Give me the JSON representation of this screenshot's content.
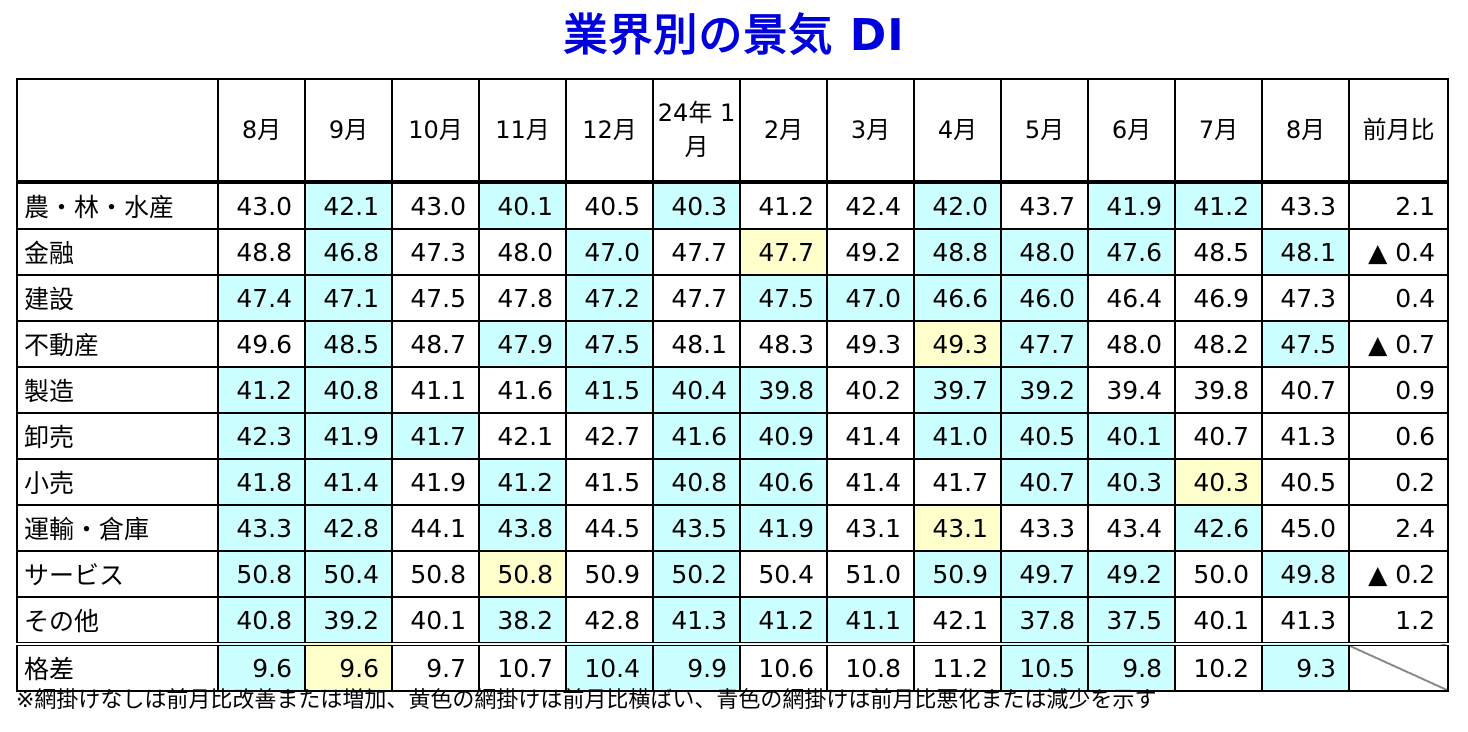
{
  "title": "業界別の景気 DI",
  "note": "※網掛けなしは前月比改善または増加、黄色の網掛けは前月比横ばい、青色の網掛けは前月比悪化または減少を示す",
  "colors": {
    "title": "#0000dd",
    "blue_shade": "#ccffff",
    "yellow_shade": "#ffffcc"
  },
  "chart_data": {
    "type": "table",
    "title": "業界別の景気 DI",
    "columns": [
      "8月",
      "9月",
      "10月",
      "11月",
      "12月",
      "24年 1月",
      "2月",
      "3月",
      "4月",
      "5月",
      "6月",
      "7月",
      "8月"
    ],
    "change_column": "前月比",
    "rows": [
      {
        "label": "農・林・水産",
        "values": [
          "43.0",
          "42.1",
          "43.0",
          "40.1",
          "40.5",
          "40.3",
          "41.2",
          "42.4",
          "42.0",
          "43.7",
          "41.9",
          "41.2",
          "43.3"
        ],
        "shade": [
          "",
          "b",
          "",
          "b",
          "",
          "b",
          "",
          "",
          "b",
          "",
          "b",
          "b",
          ""
        ],
        "change": "2.1"
      },
      {
        "label": "金融",
        "values": [
          "48.8",
          "46.8",
          "47.3",
          "48.0",
          "47.0",
          "47.7",
          "47.7",
          "49.2",
          "48.8",
          "48.0",
          "47.6",
          "48.5",
          "48.1"
        ],
        "shade": [
          "",
          "b",
          "",
          "",
          "b",
          "",
          "y",
          "",
          "b",
          "b",
          "b",
          "",
          "b"
        ],
        "change": "▲ 0.4"
      },
      {
        "label": "建設",
        "values": [
          "47.4",
          "47.1",
          "47.5",
          "47.8",
          "47.2",
          "47.7",
          "47.5",
          "47.0",
          "46.6",
          "46.0",
          "46.4",
          "46.9",
          "47.3"
        ],
        "shade": [
          "b",
          "b",
          "",
          "",
          "b",
          "",
          "b",
          "b",
          "b",
          "b",
          "",
          "",
          ""
        ],
        "change": "0.4"
      },
      {
        "label": "不動産",
        "values": [
          "49.6",
          "48.5",
          "48.7",
          "47.9",
          "47.5",
          "48.1",
          "48.3",
          "49.3",
          "49.3",
          "47.7",
          "48.0",
          "48.2",
          "47.5"
        ],
        "shade": [
          "",
          "b",
          "",
          "b",
          "b",
          "",
          "",
          "",
          "y",
          "b",
          "",
          "",
          "b"
        ],
        "change": "▲ 0.7"
      },
      {
        "label": "製造",
        "values": [
          "41.2",
          "40.8",
          "41.1",
          "41.6",
          "41.5",
          "40.4",
          "39.8",
          "40.2",
          "39.7",
          "39.2",
          "39.4",
          "39.8",
          "40.7"
        ],
        "shade": [
          "b",
          "b",
          "",
          "",
          "b",
          "b",
          "b",
          "",
          "b",
          "b",
          "",
          "",
          ""
        ],
        "change": "0.9"
      },
      {
        "label": "卸売",
        "values": [
          "42.3",
          "41.9",
          "41.7",
          "42.1",
          "42.7",
          "41.6",
          "40.9",
          "41.4",
          "41.0",
          "40.5",
          "40.1",
          "40.7",
          "41.3"
        ],
        "shade": [
          "b",
          "b",
          "b",
          "",
          "",
          "b",
          "b",
          "",
          "b",
          "b",
          "b",
          "",
          ""
        ],
        "change": "0.6"
      },
      {
        "label": "小売",
        "values": [
          "41.8",
          "41.4",
          "41.9",
          "41.2",
          "41.5",
          "40.8",
          "40.6",
          "41.4",
          "41.7",
          "40.7",
          "40.3",
          "40.3",
          "40.5"
        ],
        "shade": [
          "b",
          "b",
          "",
          "b",
          "",
          "b",
          "b",
          "",
          "",
          "b",
          "b",
          "y",
          ""
        ],
        "change": "0.2"
      },
      {
        "label": "運輸・倉庫",
        "values": [
          "43.3",
          "42.8",
          "44.1",
          "43.8",
          "44.5",
          "43.5",
          "41.9",
          "43.1",
          "43.1",
          "43.3",
          "43.4",
          "42.6",
          "45.0"
        ],
        "shade": [
          "b",
          "b",
          "",
          "b",
          "",
          "b",
          "b",
          "",
          "y",
          "",
          "",
          "b",
          ""
        ],
        "change": "2.4"
      },
      {
        "label": "サービス",
        "values": [
          "50.8",
          "50.4",
          "50.8",
          "50.8",
          "50.9",
          "50.2",
          "50.4",
          "51.0",
          "50.9",
          "49.7",
          "49.2",
          "50.0",
          "49.8"
        ],
        "shade": [
          "b",
          "b",
          "",
          "y",
          "",
          "b",
          "",
          "",
          "b",
          "b",
          "b",
          "",
          "b"
        ],
        "change": "▲ 0.2"
      },
      {
        "label": "その他",
        "values": [
          "40.8",
          "39.2",
          "40.1",
          "38.2",
          "42.8",
          "41.3",
          "41.2",
          "41.1",
          "42.1",
          "37.8",
          "37.5",
          "40.1",
          "41.3"
        ],
        "shade": [
          "b",
          "b",
          "",
          "b",
          "",
          "b",
          "b",
          "b",
          "",
          "b",
          "b",
          "",
          ""
        ],
        "change": "1.2"
      }
    ],
    "gap_row": {
      "label": "格差",
      "values": [
        "9.6",
        "9.6",
        "9.7",
        "10.7",
        "10.4",
        "9.9",
        "10.6",
        "10.8",
        "11.2",
        "10.5",
        "9.8",
        "10.2",
        "9.3"
      ],
      "shade": [
        "b",
        "y",
        "",
        "",
        "b",
        "b",
        "",
        "",
        "",
        "b",
        "b",
        "",
        "b"
      ]
    }
  }
}
